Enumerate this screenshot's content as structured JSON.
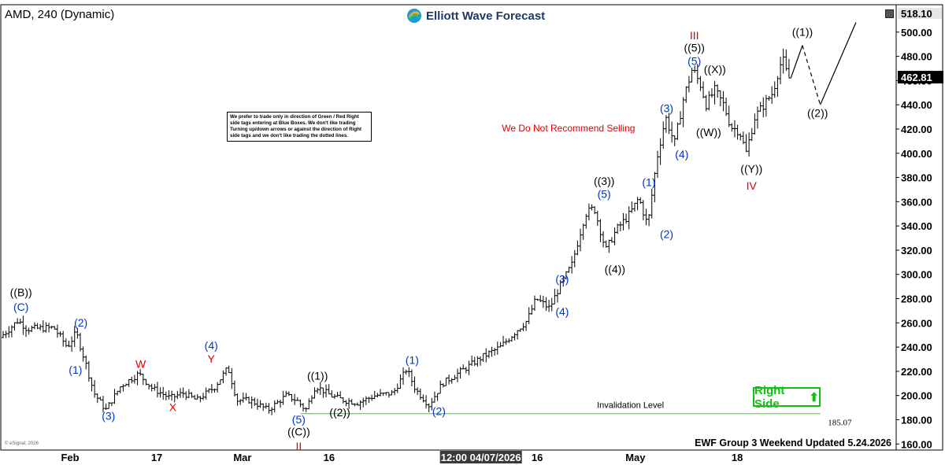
{
  "header": {
    "title": "AMD, 240 (Dynamic)",
    "logo_text": "Elliott Wave Forecast"
  },
  "note_text": "We prefer to trade only in direction of Green / Red Right side tags entering at Blue Boxes. We don't like trading Turning up/down arrows or against the direction of Right side tags and we don't like trading the dotted lines.",
  "warning_text": "We Do Not Recommend Selling",
  "invalidation": {
    "label": "Invalidation Level",
    "value": "185.07"
  },
  "right_side_tag": "Right Side",
  "footer_text": "EWF Group 3 Weekend Updated 5.24.2026",
  "esignal_text": "© eSignal, 2026",
  "colors": {
    "blue": "#0033cc",
    "red": "#e00000",
    "green": "#13c113",
    "black": "#000000"
  },
  "chart_data": {
    "type": "ohlc",
    "symbol": "AMD",
    "interval": "240",
    "ylim": [
      155,
      520
    ],
    "y_ticks": [
      160,
      180,
      200,
      220,
      240,
      260,
      280,
      300,
      320,
      340,
      360,
      380,
      400,
      420,
      440,
      460,
      480,
      500
    ],
    "y_tick_labels": [
      "160.00",
      "180.00",
      "200.00",
      "220.00",
      "240.00",
      "260.00",
      "280.00",
      "300.00",
      "320.00",
      "340.00",
      "360.00",
      "380.00",
      "400.00",
      "420.00",
      "440.00",
      "460.00",
      "480.00",
      "500.00"
    ],
    "top_price_label": "518.10",
    "last_price": 462.81,
    "last_price_label": "462.81",
    "x_labels": [
      {
        "label": "Feb",
        "pos": 0.075
      },
      {
        "label": "17",
        "pos": 0.172
      },
      {
        "label": "Mar",
        "pos": 0.268
      },
      {
        "label": "16",
        "pos": 0.365
      },
      {
        "label": "12:00 04/07/2026",
        "pos": 0.535
      },
      {
        "label": "16",
        "pos": 0.598
      },
      {
        "label": "May",
        "pos": 0.708
      },
      {
        "label": "18",
        "pos": 0.822
      }
    ],
    "path": [
      [
        0,
        248
      ],
      [
        0.02,
        262
      ],
      [
        0.03,
        255
      ],
      [
        0.06,
        256
      ],
      [
        0.075,
        240
      ],
      [
        0.085,
        252
      ],
      [
        0.095,
        228
      ],
      [
        0.105,
        202
      ],
      [
        0.118,
        188
      ],
      [
        0.135,
        208
      ],
      [
        0.155,
        218
      ],
      [
        0.17,
        206
      ],
      [
        0.19,
        198
      ],
      [
        0.205,
        202
      ],
      [
        0.22,
        196
      ],
      [
        0.24,
        207
      ],
      [
        0.255,
        223
      ],
      [
        0.265,
        196
      ],
      [
        0.28,
        196
      ],
      [
        0.3,
        188
      ],
      [
        0.32,
        200
      ],
      [
        0.332,
        196
      ],
      [
        0.342,
        188
      ],
      [
        0.353,
        208
      ],
      [
        0.37,
        200
      ],
      [
        0.385,
        196
      ],
      [
        0.4,
        194
      ],
      [
        0.42,
        200
      ],
      [
        0.44,
        202
      ],
      [
        0.455,
        222
      ],
      [
        0.465,
        205
      ],
      [
        0.48,
        192
      ],
      [
        0.495,
        210
      ],
      [
        0.52,
        222
      ],
      [
        0.54,
        232
      ],
      [
        0.56,
        240
      ],
      [
        0.58,
        255
      ],
      [
        0.59,
        262
      ],
      [
        0.6,
        280
      ],
      [
        0.615,
        272
      ],
      [
        0.625,
        288
      ],
      [
        0.64,
        308
      ],
      [
        0.655,
        350
      ],
      [
        0.665,
        355
      ],
      [
        0.678,
        320
      ],
      [
        0.69,
        337
      ],
      [
        0.705,
        350
      ],
      [
        0.715,
        363
      ],
      [
        0.725,
        340
      ],
      [
        0.735,
        395
      ],
      [
        0.745,
        430
      ],
      [
        0.755,
        408
      ],
      [
        0.765,
        445
      ],
      [
        0.775,
        470
      ],
      [
        0.785,
        455
      ],
      [
        0.79,
        440
      ],
      [
        0.8,
        452
      ],
      [
        0.81,
        440
      ],
      [
        0.818,
        422
      ],
      [
        0.828,
        418
      ],
      [
        0.835,
        400
      ],
      [
        0.845,
        430
      ],
      [
        0.855,
        440
      ],
      [
        0.865,
        450
      ],
      [
        0.872,
        470
      ],
      [
        0.876,
        478
      ],
      [
        0.882,
        462
      ]
    ],
    "projection": {
      "solid": [
        [
          0.882,
          462
        ],
        [
          0.895,
          489
        ]
      ],
      "dashed": [
        [
          0.895,
          489
        ],
        [
          0.915,
          440
        ]
      ],
      "arrow": [
        [
          0.915,
          440
        ],
        [
          0.955,
          508
        ]
      ]
    },
    "labels": [
      {
        "text": "((B))",
        "pos": 0.02,
        "price": 282,
        "color": "black"
      },
      {
        "text": "(C)",
        "pos": 0.02,
        "price": 270,
        "color": "blue"
      },
      {
        "text": "(2)",
        "pos": 0.087,
        "price": 257,
        "color": "blue"
      },
      {
        "text": "(1)",
        "pos": 0.081,
        "price": 218,
        "color": "blue"
      },
      {
        "text": "(3)",
        "pos": 0.118,
        "price": 180,
        "color": "blue"
      },
      {
        "text": "W",
        "pos": 0.154,
        "price": 223,
        "color": "red"
      },
      {
        "text": "X",
        "pos": 0.19,
        "price": 187,
        "color": "red"
      },
      {
        "text": "(4)",
        "pos": 0.233,
        "price": 238,
        "color": "blue"
      },
      {
        "text": "Y",
        "pos": 0.233,
        "price": 227,
        "color": "red"
      },
      {
        "text": "((1))",
        "pos": 0.352,
        "price": 213,
        "color": "black"
      },
      {
        "text": "((2))",
        "pos": 0.377,
        "price": 183,
        "color": "black"
      },
      {
        "text": "(5)",
        "pos": 0.331,
        "price": 177,
        "color": "blue"
      },
      {
        "text": "((C))",
        "pos": 0.331,
        "price": 167,
        "color": "black"
      },
      {
        "text": "II",
        "pos": 0.331,
        "price": 155,
        "color": "red"
      },
      {
        "text": "(1)",
        "pos": 0.458,
        "price": 226,
        "color": "blue"
      },
      {
        "text": "(2)",
        "pos": 0.488,
        "price": 184,
        "color": "blue"
      },
      {
        "text": "(3)",
        "pos": 0.626,
        "price": 293,
        "color": "blue"
      },
      {
        "text": "(4)",
        "pos": 0.626,
        "price": 266,
        "color": "blue"
      },
      {
        "text": "((3))",
        "pos": 0.673,
        "price": 374,
        "color": "black"
      },
      {
        "text": "(5)",
        "pos": 0.673,
        "price": 363,
        "color": "blue"
      },
      {
        "text": "((4))",
        "pos": 0.685,
        "price": 301,
        "color": "black"
      },
      {
        "text": "(1)",
        "pos": 0.723,
        "price": 373,
        "color": "blue"
      },
      {
        "text": "(2)",
        "pos": 0.743,
        "price": 330,
        "color": "blue"
      },
      {
        "text": "(3)",
        "pos": 0.743,
        "price": 434,
        "color": "blue"
      },
      {
        "text": "(4)",
        "pos": 0.76,
        "price": 396,
        "color": "blue"
      },
      {
        "text": "III",
        "pos": 0.774,
        "price": 494,
        "color": "red"
      },
      {
        "text": "((5))",
        "pos": 0.774,
        "price": 484,
        "color": "black"
      },
      {
        "text": "(5)",
        "pos": 0.774,
        "price": 473,
        "color": "blue"
      },
      {
        "text": "((X))",
        "pos": 0.797,
        "price": 466,
        "color": "black"
      },
      {
        "text": "((W))",
        "pos": 0.79,
        "price": 414,
        "color": "black"
      },
      {
        "text": "((Y))",
        "pos": 0.838,
        "price": 384,
        "color": "black"
      },
      {
        "text": "IV",
        "pos": 0.838,
        "price": 370,
        "color": "red"
      },
      {
        "text": "((1))",
        "pos": 0.895,
        "price": 497,
        "color": "black"
      },
      {
        "text": "((2))",
        "pos": 0.912,
        "price": 430,
        "color": "black"
      }
    ],
    "invalidation_price": 185.07
  }
}
